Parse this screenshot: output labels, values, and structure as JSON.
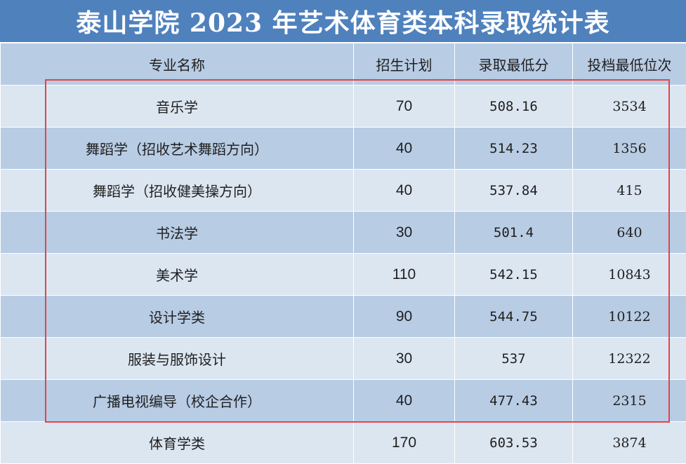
{
  "title": "泰山学院 2023 年艺术体育类本科录取统计表",
  "headers": {
    "major": "专业名称",
    "plan": "招生计划",
    "min_score": "录取最低分",
    "min_rank": "投档最低位次"
  },
  "rows": [
    {
      "major": "音乐学",
      "plan": "70",
      "min_score": "508.16",
      "min_rank": "3534"
    },
    {
      "major": "舞蹈学（招收艺术舞蹈方向）",
      "plan": "40",
      "min_score": "514.23",
      "min_rank": "1356"
    },
    {
      "major": "舞蹈学（招收健美操方向）",
      "plan": "40",
      "min_score": "537.84",
      "min_rank": "415"
    },
    {
      "major": "书法学",
      "plan": "30",
      "min_score": "501.4",
      "min_rank": "640"
    },
    {
      "major": "美术学",
      "plan": "110",
      "min_score": "542.15",
      "min_rank": "10843"
    },
    {
      "major": "设计学类",
      "plan": "90",
      "min_score": "544.75",
      "min_rank": "10122"
    },
    {
      "major": "服装与服饰设计",
      "plan": "30",
      "min_score": "537",
      "min_rank": "12322"
    },
    {
      "major": "广播电视编导（校企合作）",
      "plan": "40",
      "min_score": "477.43",
      "min_rank": "2315"
    },
    {
      "major": "体育学类",
      "plan": "170",
      "min_score": "603.53",
      "min_rank": "3874"
    }
  ],
  "colors": {
    "title_bg": "#4f81bd",
    "header_bg": "#b8cce4",
    "row_light": "#dce6f1",
    "row_dark": "#b8cce4",
    "highlight_border": "#e5434a"
  }
}
